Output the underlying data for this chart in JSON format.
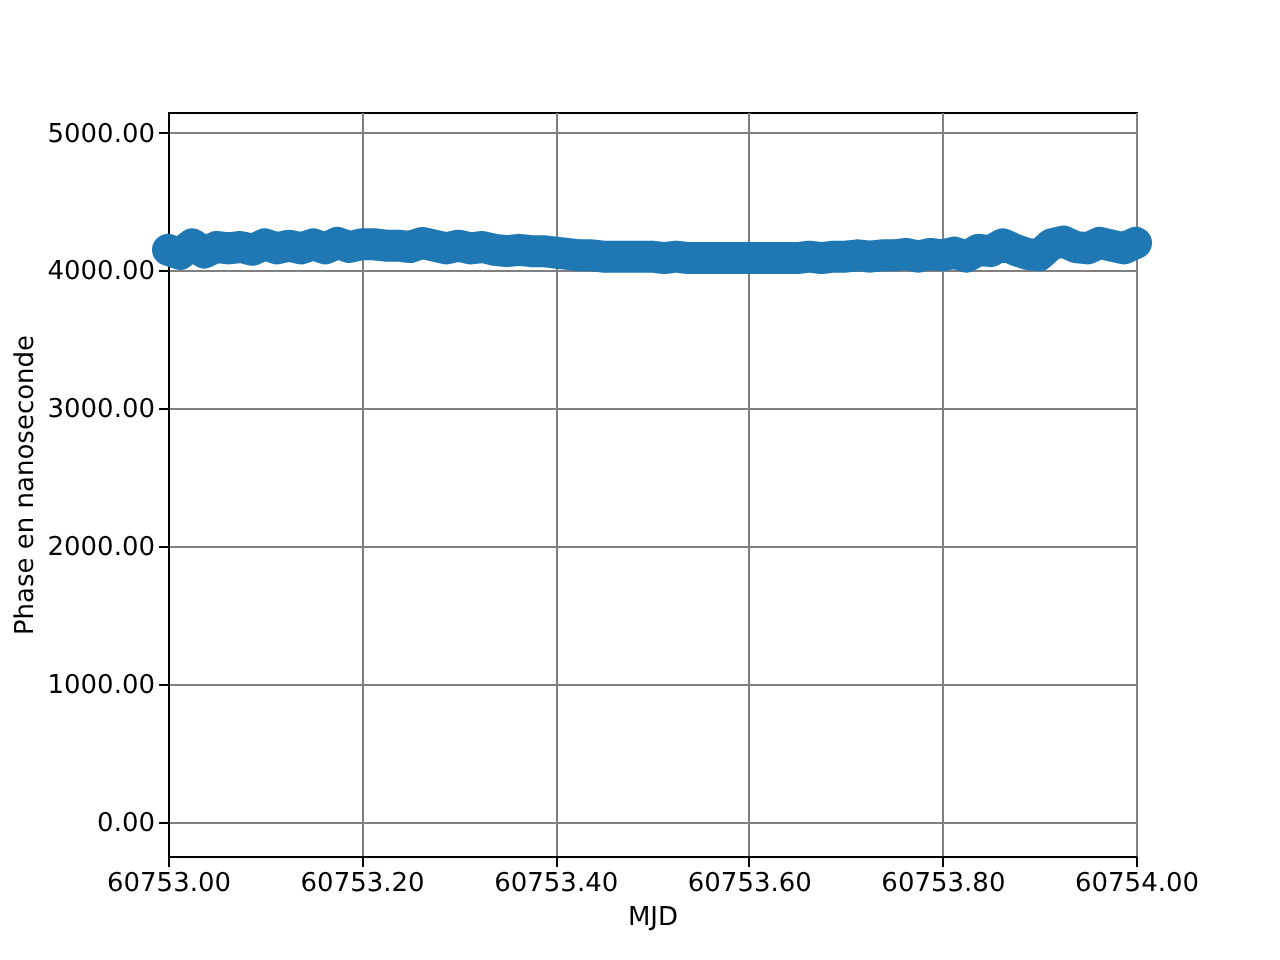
{
  "chart_data": {
    "type": "line",
    "xlabel": "MJD",
    "ylabel": "Phase en nanoseconde",
    "xlim": [
      60753.0,
      60754.0
    ],
    "ylim": [
      -250,
      5150
    ],
    "xticks": [
      {
        "value": 60753.0,
        "label": "60753.00"
      },
      {
        "value": 60753.2,
        "label": "60753.20"
      },
      {
        "value": 60753.4,
        "label": "60753.40"
      },
      {
        "value": 60753.6,
        "label": "60753.60"
      },
      {
        "value": 60753.8,
        "label": "60753.80"
      },
      {
        "value": 60754.0,
        "label": "60754.00"
      }
    ],
    "yticks": [
      {
        "value": 0,
        "label": "0.00"
      },
      {
        "value": 1000,
        "label": "1000.00"
      },
      {
        "value": 2000,
        "label": "2000.00"
      },
      {
        "value": 3000,
        "label": "3000.00"
      },
      {
        "value": 4000,
        "label": "4000.00"
      },
      {
        "value": 5000,
        "label": "5000.00"
      }
    ],
    "grid": true,
    "series": [
      {
        "color": "#1f77b4",
        "x": [
          60753.0,
          60753.0125,
          60753.025,
          60753.0375,
          60753.05,
          60753.0625,
          60753.075,
          60753.0875,
          60753.1,
          60753.1125,
          60753.125,
          60753.1375,
          60753.15,
          60753.1625,
          60753.175,
          60753.1875,
          60753.2,
          60753.2125,
          60753.225,
          60753.2375,
          60753.25,
          60753.2625,
          60753.275,
          60753.2875,
          60753.3,
          60753.3125,
          60753.325,
          60753.3375,
          60753.35,
          60753.3625,
          60753.375,
          60753.3875,
          60753.4,
          60753.4125,
          60753.425,
          60753.4375,
          60753.45,
          60753.4625,
          60753.475,
          60753.4875,
          60753.5,
          60753.5125,
          60753.525,
          60753.5375,
          60753.55,
          60753.5625,
          60753.575,
          60753.5875,
          60753.6,
          60753.6125,
          60753.625,
          60753.6375,
          60753.65,
          60753.6625,
          60753.675,
          60753.6875,
          60753.7,
          60753.7125,
          60753.725,
          60753.7375,
          60753.75,
          60753.7625,
          60753.775,
          60753.7875,
          60753.8,
          60753.8125,
          60753.825,
          60753.8375,
          60753.85,
          60753.8625,
          60753.875,
          60753.8875,
          60753.9,
          60753.9125,
          60753.925,
          60753.9375,
          60753.95,
          60753.9625,
          60753.975,
          60753.9875,
          60754.0
        ],
        "values": [
          4150,
          4120,
          4190,
          4130,
          4170,
          4160,
          4170,
          4150,
          4190,
          4160,
          4180,
          4160,
          4190,
          4160,
          4200,
          4170,
          4190,
          4190,
          4180,
          4180,
          4170,
          4200,
          4180,
          4160,
          4180,
          4160,
          4170,
          4150,
          4140,
          4150,
          4140,
          4140,
          4130,
          4120,
          4110,
          4110,
          4100,
          4100,
          4100,
          4100,
          4100,
          4090,
          4100,
          4090,
          4090,
          4090,
          4090,
          4090,
          4090,
          4090,
          4090,
          4090,
          4090,
          4100,
          4090,
          4100,
          4100,
          4110,
          4100,
          4110,
          4110,
          4120,
          4100,
          4120,
          4110,
          4130,
          4100,
          4150,
          4140,
          4190,
          4150,
          4120,
          4110,
          4190,
          4210,
          4170,
          4160,
          4200,
          4180,
          4160,
          4200
        ]
      }
    ]
  }
}
